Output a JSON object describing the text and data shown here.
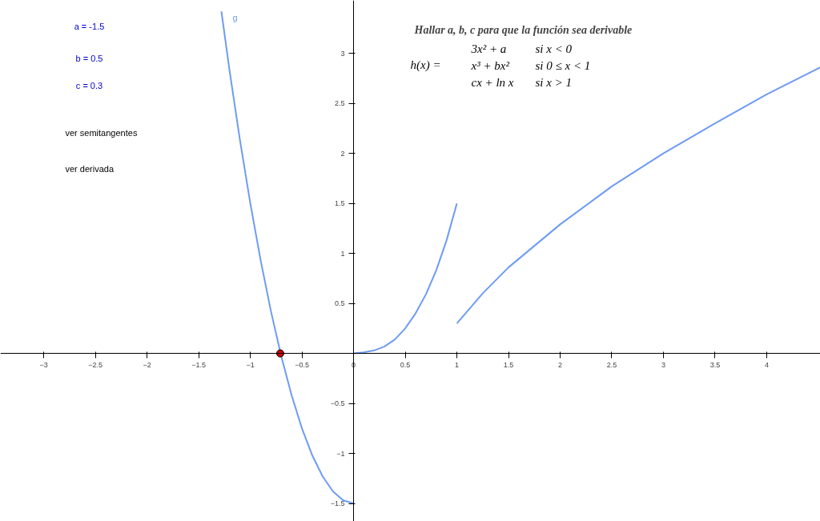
{
  "chart_data": {
    "type": "line",
    "title": "Hallar a, b, c para que la función sea derivable",
    "xlim": [
      -3.42,
      4.52
    ],
    "ylim": [
      -1.68,
      3.53
    ],
    "xticks": [
      -3,
      -2.5,
      -2,
      -1.5,
      -1,
      -0.5,
      0,
      0.5,
      1,
      1.5,
      2,
      2.5,
      3,
      3.5,
      4
    ],
    "yticks": [
      -1.5,
      -1,
      -0.5,
      0.5,
      1,
      1.5,
      2,
      2.5,
      3
    ],
    "grid": false,
    "series": [
      {
        "name": "g",
        "color": "#6e9bf5",
        "x": [
          -1.28,
          -1.2,
          -1.1,
          -1.0,
          -0.9,
          -0.8,
          -0.7,
          -0.6,
          -0.5,
          -0.4,
          -0.3,
          -0.2,
          -0.1,
          0
        ],
        "values": [
          3.42,
          2.82,
          2.13,
          1.5,
          0.93,
          0.42,
          -0.03,
          -0.42,
          -0.75,
          -1.02,
          -1.23,
          -1.38,
          -1.47,
          -1.5
        ]
      },
      {
        "color": "#6e9bf5",
        "x": [
          0,
          0.1,
          0.2,
          0.3,
          0.4,
          0.5,
          0.6,
          0.7,
          0.8,
          0.9,
          1
        ],
        "values": [
          0,
          0.01,
          0.03,
          0.07,
          0.14,
          0.25,
          0.4,
          0.59,
          0.83,
          1.13,
          1.5
        ]
      },
      {
        "color": "#6e9bf5",
        "x": [
          1,
          1.25,
          1.5,
          2,
          2.5,
          3,
          3.5,
          4,
          4.52
        ],
        "values": [
          0.3,
          0.6,
          0.86,
          1.29,
          1.67,
          2.0,
          2.3,
          2.59,
          2.86
        ]
      },
      {
        "type": "scatter",
        "marker": "circle",
        "color": "#cc0000",
        "x": [
          -0.71
        ],
        "values": [
          0
        ]
      }
    ],
    "annotations": [
      "a = -1.5",
      "b = 0.5",
      "c = 0.3",
      "ver semitangentes",
      "ver derivada",
      "h(x) =",
      "3x² + a",
      "si x < 0",
      "x³ + bx²",
      "si 0 ≤ x < 1",
      "cx + ln x",
      "si x > 1"
    ]
  }
}
